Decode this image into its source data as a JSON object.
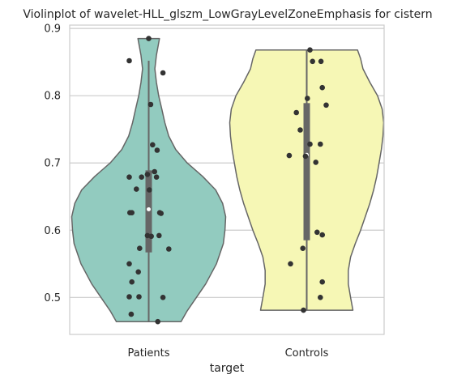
{
  "chart_data": {
    "type": "violin",
    "title": "Violinplot of wavelet-HLL_glszm_LowGrayLevelZoneEmphasis for cistern",
    "xlabel": "target",
    "ylabel": "",
    "categories": [
      "Patients",
      "Controls"
    ],
    "ylim": [
      0.445,
      0.905
    ],
    "yticks": [
      0.5,
      0.6,
      0.7,
      0.8,
      0.9
    ],
    "ytick_labels": [
      "0.5",
      "0.6",
      "0.7",
      "0.8",
      "0.9"
    ],
    "grid": "horizontal",
    "colors": {
      "Patients": "#92cbbf",
      "Controls": "#f6f7b5",
      "outline": "#666666",
      "points": "#333333",
      "grid": "#cccccc",
      "frame": "#cccccc",
      "box": "#666666"
    },
    "violins": [
      {
        "name": "Patients",
        "range": [
          0.464,
          0.885
        ],
        "box": {
          "q1": 0.567,
          "median": 0.631,
          "q3": 0.689,
          "whisker_low": 0.464,
          "whisker_high": 0.852
        },
        "profile": [
          [
            0.464,
            0.42
          ],
          [
            0.48,
            0.5
          ],
          [
            0.5,
            0.62
          ],
          [
            0.52,
            0.74
          ],
          [
            0.55,
            0.88
          ],
          [
            0.58,
            0.97
          ],
          [
            0.6,
            0.99
          ],
          [
            0.62,
            1.0
          ],
          [
            0.64,
            0.96
          ],
          [
            0.66,
            0.87
          ],
          [
            0.68,
            0.7
          ],
          [
            0.7,
            0.5
          ],
          [
            0.72,
            0.35
          ],
          [
            0.74,
            0.26
          ],
          [
            0.76,
            0.21
          ],
          [
            0.78,
            0.17
          ],
          [
            0.8,
            0.13
          ],
          [
            0.82,
            0.1
          ],
          [
            0.84,
            0.08
          ],
          [
            0.86,
            0.1
          ],
          [
            0.885,
            0.14
          ]
        ],
        "points": [
          0.885,
          0.852,
          0.834,
          0.787,
          0.727,
          0.719,
          0.687,
          0.683,
          0.679,
          0.679,
          0.679,
          0.661,
          0.66,
          0.626,
          0.626,
          0.626,
          0.625,
          0.592,
          0.592,
          0.591,
          0.573,
          0.572,
          0.55,
          0.538,
          0.523,
          0.501,
          0.501,
          0.5,
          0.475,
          0.464
        ],
        "jitter": [
          0.0,
          -0.3,
          0.22,
          0.03,
          0.06,
          0.13,
          0.09,
          -0.02,
          -0.3,
          -0.11,
          0.12,
          -0.19,
          0.01,
          -0.29,
          -0.26,
          0.17,
          0.19,
          -0.02,
          0.16,
          0.04,
          -0.14,
          0.31,
          -0.3,
          -0.16,
          -0.26,
          -0.3,
          -0.15,
          0.22,
          -0.27,
          0.14
        ]
      },
      {
        "name": "Controls",
        "range": [
          0.481,
          0.868
        ],
        "box": {
          "q1": 0.585,
          "median": 0.712,
          "q3": 0.789,
          "whisker_low": 0.481,
          "whisker_high": 0.868
        },
        "profile": [
          [
            0.481,
            0.6
          ],
          [
            0.5,
            0.57
          ],
          [
            0.52,
            0.54
          ],
          [
            0.54,
            0.54
          ],
          [
            0.56,
            0.57
          ],
          [
            0.58,
            0.63
          ],
          [
            0.6,
            0.7
          ],
          [
            0.62,
            0.76
          ],
          [
            0.64,
            0.82
          ],
          [
            0.66,
            0.87
          ],
          [
            0.68,
            0.91
          ],
          [
            0.7,
            0.94
          ],
          [
            0.72,
            0.97
          ],
          [
            0.74,
            0.99
          ],
          [
            0.76,
            1.0
          ],
          [
            0.78,
            0.98
          ],
          [
            0.8,
            0.92
          ],
          [
            0.82,
            0.82
          ],
          [
            0.84,
            0.73
          ],
          [
            0.855,
            0.7
          ],
          [
            0.868,
            0.66
          ]
        ],
        "points": [
          0.868,
          0.851,
          0.851,
          0.812,
          0.796,
          0.786,
          0.775,
          0.749,
          0.728,
          0.728,
          0.711,
          0.71,
          0.701,
          0.597,
          0.593,
          0.573,
          0.55,
          0.523,
          0.5,
          0.481
        ],
        "jitter": [
          0.05,
          0.09,
          0.22,
          0.24,
          0.01,
          0.3,
          -0.16,
          -0.1,
          0.05,
          0.21,
          -0.27,
          -0.02,
          0.14,
          0.16,
          0.24,
          -0.06,
          -0.25,
          0.24,
          0.21,
          -0.05
        ]
      }
    ]
  }
}
